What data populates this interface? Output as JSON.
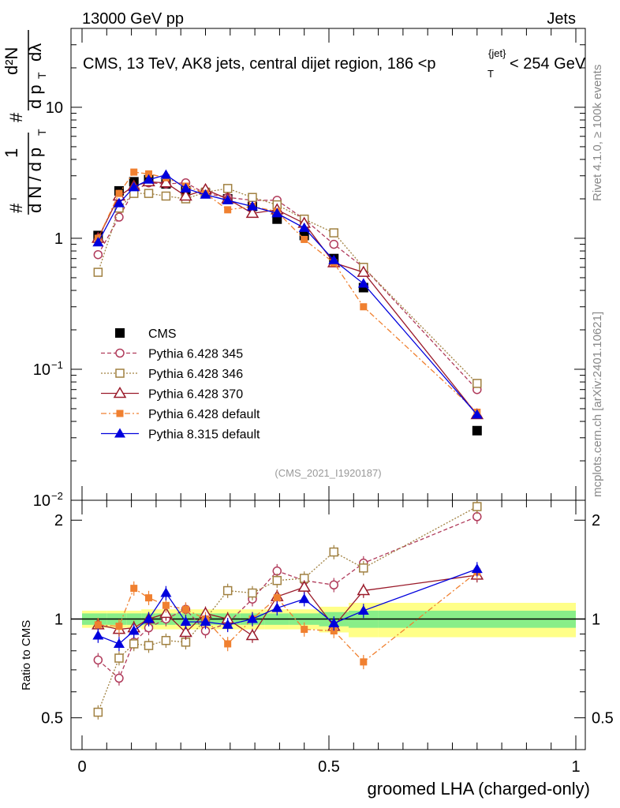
{
  "header": {
    "left": "13000 GeV pp",
    "right": "Jets"
  },
  "title": {
    "prefix": "CMS, 13 TeV, AK8 jets, central dijet region, 186 <p",
    "sub": "T",
    "sup": "{jet}",
    "suffix": "< 254 GeV"
  },
  "side_labels": {
    "rivet": "Rivet 4.1.0, ≥ 100k events",
    "mcplots": "mcplots.cern.ch [arXiv:2401.10621]"
  },
  "analysis_id": "(CMS_2021_I1920187)",
  "ylabel_main": {
    "hash1": "#",
    "frac1_num": "1",
    "frac1_den": "d N / d p",
    "frac1_den_sub": "T",
    "hash2": "#",
    "frac2_num": "d²N",
    "frac2_den": "d p",
    "frac2_den_sub": "T",
    "frac2_den_tail": "dλ"
  },
  "ylabel_ratio": "Ratio to CMS",
  "xlabel": "groomed LHA (charged-only)",
  "main_ticks": [
    {
      "value": 10,
      "label": "10"
    },
    {
      "value": 1,
      "label": "1"
    },
    {
      "value": 0.1,
      "label": "10",
      "sup": "−1"
    },
    {
      "value": 0.01,
      "label": "10",
      "sup": "−2"
    }
  ],
  "ratio_ticks": [
    {
      "value": 2,
      "label": "2"
    },
    {
      "value": 1,
      "label": "1"
    },
    {
      "value": 0.5,
      "label": "0.5"
    }
  ],
  "x_ticks": [
    {
      "value": 0,
      "label": "0"
    },
    {
      "value": 0.5,
      "label": "0.5"
    },
    {
      "value": 1,
      "label": "1"
    }
  ],
  "chart_data": {
    "type": "line",
    "title": "CMS, 13 TeV, AK8 jets, central dijet region, 186 < pT{jet} < 254 GeV",
    "xlabel": "groomed LHA (charged-only)",
    "ylabel": "1/(dN/dpT) d²N/(dpT dλ)",
    "xlim": [
      0,
      1
    ],
    "ylim_main": [
      0.01,
      40
    ],
    "ylim_ratio": [
      0.4,
      2.3
    ],
    "yscale": "log",
    "x": [
      0.0325,
      0.075,
      0.105,
      0.135,
      0.17,
      0.21,
      0.25,
      0.295,
      0.345,
      0.395,
      0.45,
      0.51,
      0.57,
      0.8
    ],
    "x_bins": [
      [
        0.0,
        0.05
      ],
      [
        0.05,
        0.09
      ],
      [
        0.09,
        0.12
      ],
      [
        0.12,
        0.15
      ],
      [
        0.15,
        0.19
      ],
      [
        0.19,
        0.23
      ],
      [
        0.23,
        0.27
      ],
      [
        0.27,
        0.32
      ],
      [
        0.32,
        0.37
      ],
      [
        0.37,
        0.42
      ],
      [
        0.42,
        0.48
      ],
      [
        0.48,
        0.54
      ],
      [
        0.54,
        0.6
      ],
      [
        0.6,
        1.0
      ]
    ],
    "ref_band_stat": [
      0.04,
      0.04,
      0.04,
      0.04,
      0.04,
      0.04,
      0.04,
      0.04,
      0.04,
      0.04,
      0.04,
      0.05,
      0.06,
      0.06
    ],
    "ref_band_total": [
      0.06,
      0.06,
      0.06,
      0.07,
      0.07,
      0.07,
      0.07,
      0.07,
      0.07,
      0.07,
      0.07,
      0.09,
      0.12,
      0.12
    ],
    "series": [
      {
        "name": "CMS",
        "color": "#000000",
        "marker": "square-filled",
        "dash": "none",
        "values": [
          1.05,
          2.3,
          2.7,
          2.8,
          2.6,
          2.3,
          2.2,
          2.0,
          1.75,
          1.4,
          1.05,
          0.7,
          0.42,
          0.034
        ],
        "ratio": [
          1.0,
          1.0,
          1.0,
          1.0,
          1.0,
          1.0,
          1.0,
          1.0,
          1.0,
          1.0,
          1.0,
          1.0,
          1.0,
          1.0
        ]
      },
      {
        "name": "Pythia 6.428 345",
        "color": "#b03a5a",
        "marker": "circle-open",
        "dash": "5,3",
        "values": [
          0.75,
          1.45,
          2.3,
          2.65,
          2.6,
          2.65,
          2.2,
          2.05,
          1.95,
          1.95,
          1.4,
          0.9,
          0.6,
          0.07
        ],
        "ratio": [
          0.75,
          0.66,
          0.85,
          0.94,
          1.0,
          1.07,
          0.92,
          0.97,
          1.15,
          1.4,
          1.31,
          1.27,
          1.48,
          2.05
        ]
      },
      {
        "name": "Pythia 6.428 346",
        "color": "#a08040",
        "marker": "square-open",
        "dash": "2,2",
        "values": [
          0.55,
          1.7,
          2.2,
          2.2,
          2.1,
          2.0,
          2.25,
          2.4,
          2.05,
          1.8,
          1.4,
          1.1,
          0.6,
          0.078
        ],
        "ratio": [
          0.52,
          0.76,
          0.84,
          0.83,
          0.86,
          0.85,
          1.0,
          1.22,
          1.2,
          1.31,
          1.33,
          1.6,
          1.43,
          2.2
        ]
      },
      {
        "name": "Pythia 6.428 370",
        "color": "#9a1a2a",
        "marker": "triangle-open",
        "dash": "none",
        "values": [
          1.0,
          2.1,
          2.5,
          2.7,
          2.65,
          2.1,
          2.35,
          2.0,
          1.55,
          1.65,
          1.3,
          0.65,
          0.55,
          0.045
        ],
        "ratio": [
          0.96,
          0.93,
          0.94,
          1.0,
          1.04,
          0.91,
          1.04,
          1.0,
          0.89,
          1.17,
          1.25,
          0.95,
          1.22,
          1.36
        ]
      },
      {
        "name": "Pythia 6.428 default",
        "color": "#f08030",
        "marker": "square-filled-small",
        "dash": "7,3,2,3",
        "values": [
          1.0,
          2.2,
          3.2,
          3.1,
          2.9,
          2.5,
          2.2,
          1.65,
          1.75,
          1.6,
          0.98,
          0.65,
          0.3,
          0.047
        ],
        "ratio": [
          0.96,
          0.95,
          1.24,
          1.16,
          1.1,
          1.07,
          1.0,
          0.84,
          1.0,
          1.16,
          0.93,
          0.92,
          0.74,
          1.39
        ]
      },
      {
        "name": "Pythia 8.315 default",
        "color": "#0000dd",
        "marker": "triangle-filled",
        "dash": "none",
        "values": [
          0.93,
          1.85,
          2.45,
          2.8,
          3.05,
          2.4,
          2.15,
          1.95,
          1.75,
          1.55,
          1.2,
          0.68,
          0.45,
          0.045
        ],
        "ratio": [
          0.89,
          0.84,
          0.92,
          1.0,
          1.2,
          0.98,
          0.98,
          0.96,
          1.0,
          1.08,
          1.15,
          0.97,
          1.06,
          1.42
        ]
      }
    ]
  }
}
